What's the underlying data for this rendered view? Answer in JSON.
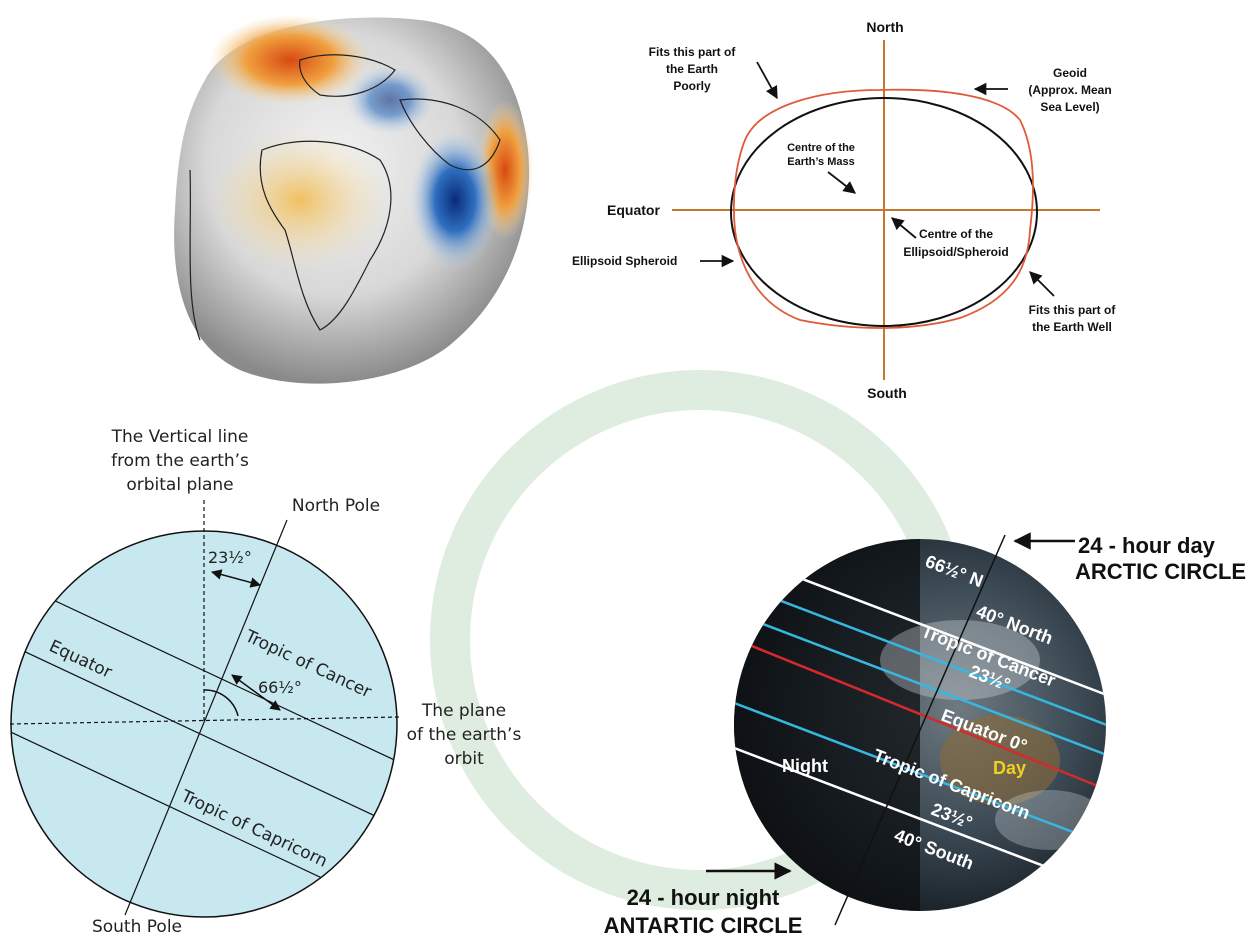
{
  "geoid_diagram": {
    "north": "North",
    "south": "South",
    "equator": "Equator",
    "fits_poorly": [
      "Fits this part of",
      "the Earth",
      "Poorly"
    ],
    "geoid": [
      "Geoid",
      "(Approx. Mean",
      "Sea Level)"
    ],
    "centre_mass": [
      "Centre of the",
      "Earth’s Mass"
    ],
    "centre_ellipsoid": [
      "Centre of the",
      "Ellipsoid/Spheroid"
    ],
    "ellipsoid": "Ellipsoid Spheroid",
    "fits_well": [
      "Fits this part of",
      "the Earth Well"
    ]
  },
  "tilt_diagram": {
    "vertical_line": [
      "The Vertical line",
      "from the earth’s",
      "orbital plane"
    ],
    "north_pole": "North Pole",
    "south_pole": "South Pole",
    "angle_small": "23½°",
    "angle_large": "66½°",
    "equator": "Equator",
    "tropic_cancer": "Tropic of Cancer",
    "tropic_capricorn": "Tropic of Capricorn",
    "orbit_plane": [
      "The plane",
      "of the earth’s",
      "orbit"
    ]
  },
  "globe_diagram": {
    "day_24": [
      "24 - hour day",
      "ARCTIC CIRCLE"
    ],
    "night_24": [
      "24 - hour night",
      "ANTARTIC CIRCLE"
    ],
    "lat_665": "66½° N",
    "lat_40n": "40° North",
    "tropic_cancer": "Tropic of Cancer",
    "deg_cancer": "23½°",
    "equator": "Equator 0°",
    "day": "Day",
    "night": "Night",
    "tropic_capricorn": "Tropic of Capricorn",
    "deg_capricorn": "23½°",
    "lat_40s": "40° South",
    "colors": {
      "day_label": "#f0d020",
      "equator_line": "#d42a2a",
      "tropic_line": "#37b6e0",
      "lat_line": "#ffffff"
    }
  }
}
